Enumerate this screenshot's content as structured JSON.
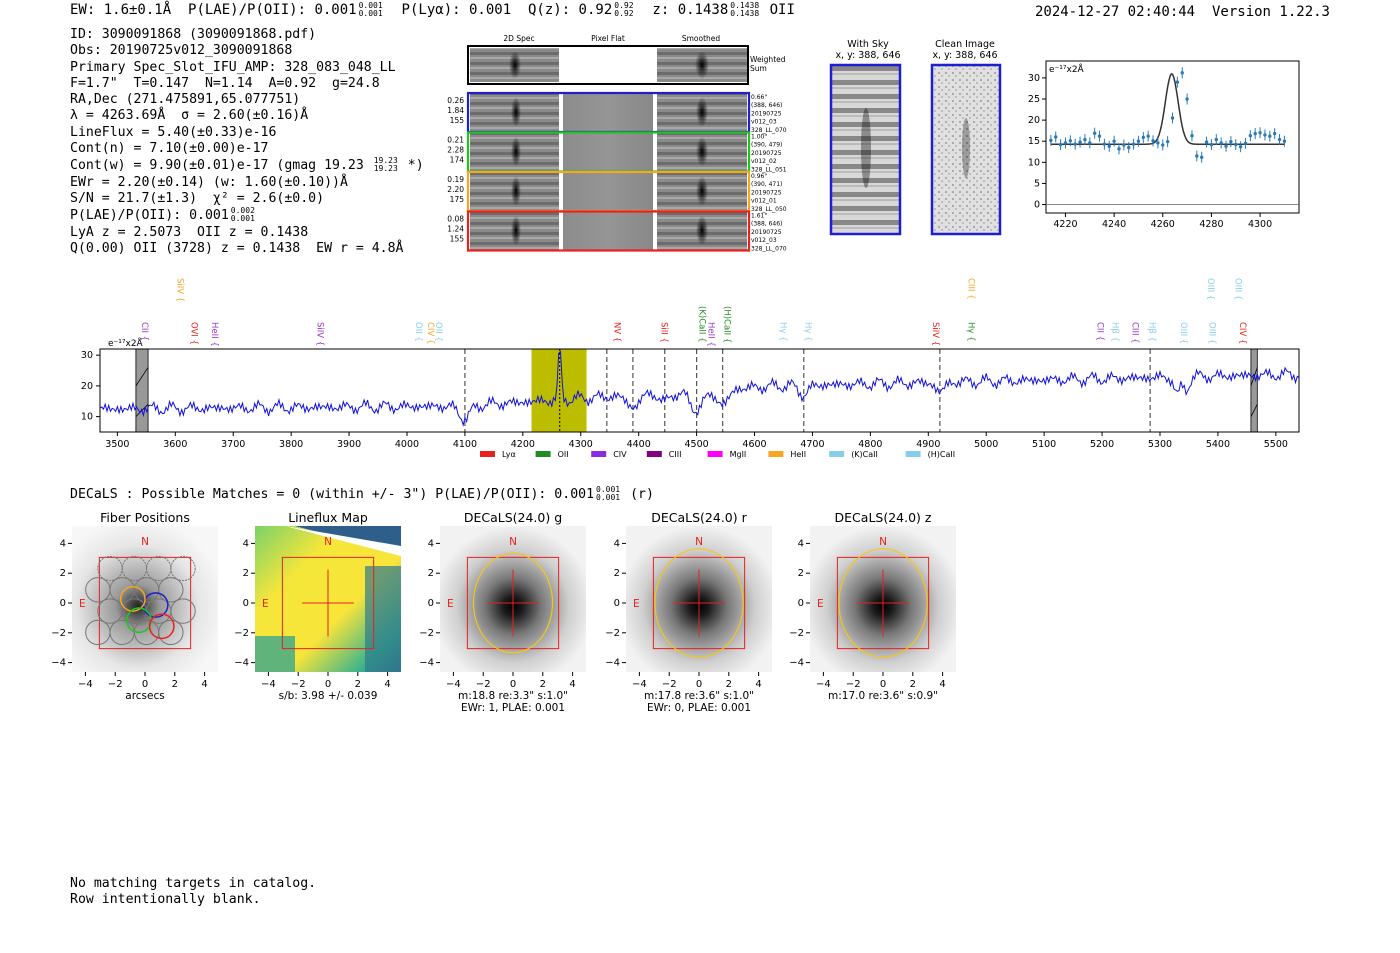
{
  "header": {
    "ew_label": "EW: 1.6±0.1Å",
    "plae_label": "P(LAE)/P(OII): 0.001",
    "plae_hi": "0.001",
    "plae_lo": "0.001",
    "plya_label": "P(Lyα): 0.001",
    "q_label": "Q(z): 0.92",
    "q_hi": "0.92",
    "q_lo": "0.92",
    "z_label": "z: 0.1438",
    "z_hi": "0.1438",
    "z_lo": "0.1438",
    "line_name": "OII",
    "timestamp": "2024-12-27 02:40:44",
    "version": "Version 1.22.3"
  },
  "info": {
    "id": "ID: 3090091868 (3090091868.pdf)",
    "obs": "Obs: 20190725v012_3090091868",
    "slot": "Primary Spec_Slot_IFU_AMP: 328_083_048_LL",
    "fta": "F=1.7\"  T=0.147  N=1.14  A=0.92  g=24.8",
    "radec": "RA,Dec (271.475891,65.077751)",
    "lambda": "λ = 4263.69Å  σ = 2.60(±0.16)Å",
    "lineflux": "LineFlux = 5.40(±0.33)e-16",
    "contn": "Cont(n) = 7.10(±0.00)e-17",
    "contw": "Cont(w) = 9.90(±0.01)e-17 (gmag 19.23",
    "gmag_hi": "19.23",
    "gmag_lo": "19.23",
    "contw_tail": "*)",
    "ewr": "EWr = 2.20(±0.14) (w: 1.60(±0.10))Å",
    "sn": "S/N = 21.7(±1.3)  χ² = 2.6(±0.0)",
    "plae": "P(LAE)/P(OII): 0.001",
    "plae_hi": "0.002",
    "plae_lo": "0.001",
    "lya": "LyA z = 2.5073  OII z = 0.1438",
    "q": "Q(0.00) OII (3728) z = 0.1438  EW r = 4.8Å"
  },
  "cutouts": {
    "col_titles": [
      "2D Spec",
      "Pixel Flat",
      "Smoothed"
    ],
    "weighted_sum": [
      "Weighted",
      "Sum"
    ],
    "rows": [
      {
        "left": [
          "0.26",
          "1.84",
          "155"
        ],
        "right": [
          "0.66\"",
          "(388, 646)",
          "20190725",
          "v012_03",
          "328_LL_070"
        ],
        "color": "#1f1fcf"
      },
      {
        "left": [
          "0.21",
          "2.28",
          "174"
        ],
        "right": [
          "1.00\"",
          "(390, 479)",
          "20190725",
          "v012_02",
          "328_LL_051"
        ],
        "color": "#22c422"
      },
      {
        "left": [
          "0.19",
          "2.20",
          "175"
        ],
        "right": [
          "0.96\"",
          "(390, 471)",
          "20190725",
          "v012_01",
          "328_LL_050"
        ],
        "color": "#f5a623"
      },
      {
        "left": [
          "0.08",
          "1.24",
          "155"
        ],
        "right": [
          "1.61\"",
          "(388, 646)",
          "20190725",
          "v012_03",
          "328_LL_070"
        ],
        "color": "#e8201e"
      }
    ]
  },
  "sky_panels": {
    "with_sky": [
      "With Sky",
      "x, y: 388, 646"
    ],
    "clean": [
      "Clean Image",
      "x, y: 388, 646"
    ]
  },
  "zoom_chart": {
    "type": "line",
    "unit": "e⁻¹⁷x2Å",
    "xlim": [
      4212,
      4316
    ],
    "ylim": [
      -2,
      34
    ],
    "xticks": [
      4220,
      4240,
      4260,
      4280,
      4300
    ],
    "yticks": [
      0,
      5,
      10,
      15,
      20,
      25,
      30
    ],
    "fit": {
      "continuum": 14.3,
      "amplitude": 16.7,
      "center": 4263.69,
      "sigma": 2.6
    },
    "points_x": [
      4214,
      4216,
      4218,
      4220,
      4222,
      4224,
      4226,
      4228,
      4230,
      4232,
      4234,
      4236,
      4238,
      4240,
      4242,
      4244,
      4246,
      4248,
      4250,
      4252,
      4254,
      4256,
      4258,
      4260,
      4262,
      4264,
      4266,
      4268,
      4270,
      4272,
      4274,
      4276,
      4278,
      4280,
      4282,
      4284,
      4286,
      4288,
      4290,
      4292,
      4294,
      4296,
      4298,
      4300,
      4302,
      4304,
      4306,
      4308,
      4310
    ],
    "points_y": [
      15.2,
      16.0,
      14.2,
      14.6,
      15.1,
      14.3,
      14.8,
      15.4,
      14.6,
      16.9,
      16.2,
      14.3,
      13.8,
      15.0,
      13.2,
      14.1,
      13.5,
      14.3,
      15.0,
      15.9,
      16.2,
      15.1,
      14.6,
      14.1,
      14.9,
      20.5,
      29.0,
      31.2,
      25.0,
      16.3,
      11.5,
      11.2,
      14.8,
      14.2,
      15.4,
      14.6,
      13.8,
      14.9,
      14.2,
      13.7,
      14.5,
      16.3,
      16.8,
      17.0,
      16.5,
      16.2,
      16.8,
      15.4,
      15.0
    ]
  },
  "chart_data": {
    "type": "line",
    "unit": "e⁻¹⁷x2Å",
    "xlim": [
      3470,
      5540
    ],
    "ylim": [
      5,
      32
    ],
    "xticks": [
      3500,
      3600,
      3700,
      3800,
      3900,
      4000,
      4100,
      4200,
      4300,
      4400,
      4500,
      4600,
      4700,
      4800,
      4900,
      5000,
      5100,
      5200,
      5300,
      5400,
      5500
    ],
    "yticks": [
      10,
      20,
      30
    ],
    "emission_wave": 4263.7,
    "highlight_range": [
      4215,
      4310
    ],
    "masked_ranges": [
      [
        3532,
        3553
      ],
      [
        5457,
        5468
      ]
    ],
    "dashed_lines": [
      4100,
      4345,
      4390,
      4445,
      4500,
      4545,
      4685,
      4920,
      5283
    ],
    "line_labels": [
      {
        "text": "CII",
        "x": 3537,
        "row": 3,
        "color": "#9933cc"
      },
      {
        "text": "SiIV",
        "x": 3599,
        "row": 1,
        "color": "#f5a623"
      },
      {
        "text": "OVI",
        "x": 3623,
        "row": 3,
        "color": "#e8201e"
      },
      {
        "text": "HeII",
        "x": 3658,
        "row": 3,
        "color": "#9933cc"
      },
      {
        "text": "SiIV",
        "x": 3840,
        "row": 3,
        "color": "#9933cc"
      },
      {
        "text": "OII",
        "x": 4010,
        "row": 3,
        "color": "#87ceeb"
      },
      {
        "text": "CIV",
        "x": 4031,
        "row": 3,
        "color": "#f5a623"
      },
      {
        "text": "OII",
        "x": 4045,
        "row": 3,
        "color": "#87ceeb"
      },
      {
        "text": "NV",
        "x": 4353,
        "row": 3,
        "color": "#e8201e"
      },
      {
        "text": "SiII",
        "x": 4434,
        "row": 3,
        "color": "#e8201e"
      },
      {
        "text": "(K)CaII",
        "x": 4500,
        "row": 2,
        "color": "#228b22"
      },
      {
        "text": "HeII",
        "x": 4515,
        "row": 3,
        "color": "#9933cc"
      },
      {
        "text": "(H)CaII",
        "x": 4543,
        "row": 2,
        "color": "#228b22"
      },
      {
        "text": "Hγ",
        "x": 4640,
        "row": 3,
        "color": "#87ceeb"
      },
      {
        "text": "Hγ",
        "x": 4683,
        "row": 3,
        "color": "#87ceeb"
      },
      {
        "text": "SiIV",
        "x": 4903,
        "row": 3,
        "color": "#e8201e"
      },
      {
        "text": "CIII",
        "x": 4964,
        "row": 1,
        "color": "#f5a623"
      },
      {
        "text": "Hγ",
        "x": 4964,
        "row": 3,
        "color": "#228b22"
      },
      {
        "text": "CII",
        "x": 5187,
        "row": 3,
        "color": "#9933cc"
      },
      {
        "text": "Hβ",
        "x": 5213,
        "row": 3,
        "color": "#87ceeb"
      },
      {
        "text": "CIII",
        "x": 5247,
        "row": 3,
        "color": "#9933cc"
      },
      {
        "text": "Hβ",
        "x": 5277,
        "row": 3,
        "color": "#87ceeb"
      },
      {
        "text": "OIII",
        "x": 5331,
        "row": 3,
        "color": "#87ceeb"
      },
      {
        "text": "OIII",
        "x": 5378,
        "row": 1,
        "color": "#87ceeb"
      },
      {
        "text": "OIII",
        "x": 5380,
        "row": 3,
        "color": "#87ceeb"
      },
      {
        "text": "OIII",
        "x": 5425,
        "row": 1,
        "color": "#87ceeb"
      },
      {
        "text": "CIV",
        "x": 5433,
        "row": 3,
        "color": "#e8201e"
      }
    ],
    "legend": [
      {
        "label": "Lyα",
        "color": "#e8201e"
      },
      {
        "label": "OII",
        "color": "#228b22"
      },
      {
        "label": "CIV",
        "color": "#8a2be2"
      },
      {
        "label": "CIII",
        "color": "#800080"
      },
      {
        "label": "MgII",
        "color": "#ff00ff"
      },
      {
        "label": "HeII",
        "color": "#f5a623"
      },
      {
        "label": "(K)CaII",
        "color": "#87ceeb"
      },
      {
        "label": "(H)CaII",
        "color": "#87ceeb"
      }
    ]
  },
  "decals": {
    "line": "DECaLS : Possible Matches = 0 (within +/- 3\")  P(LAE)/P(OII): 0.001",
    "plae_hi": "0.001",
    "plae_lo": "0.001",
    "tail": "(r)"
  },
  "thumbs": [
    {
      "title": "Fiber Positions",
      "captions": [
        "arcsecs"
      ]
    },
    {
      "title": "Lineflux Map",
      "captions": [
        "s/b: 3.98 +/- 0.039"
      ]
    },
    {
      "title": "DECaLS(24.0) g",
      "captions": [
        "m:18.8  re:3.3\"  s:1.0\"",
        "EWr: 1, PLAE: 0.001"
      ]
    },
    {
      "title": "DECaLS(24.0) r",
      "captions": [
        "m:17.8  re:3.6\"  s:1.0\"",
        "EWr: 0, PLAE: 0.001"
      ]
    },
    {
      "title": "DECaLS(24.0) z",
      "captions": [
        "m:17.0  re:3.6\"  s:0.9\""
      ]
    }
  ],
  "thumb_axes": {
    "ticks": [
      -4,
      -2,
      0,
      2,
      4
    ],
    "tick_labels": [
      "−4",
      "−2",
      "0",
      "2",
      "4"
    ],
    "north": "N",
    "east": "E"
  },
  "footer": {
    "line1": "No matching targets in catalog.",
    "line2": "Row intentionally blank."
  }
}
